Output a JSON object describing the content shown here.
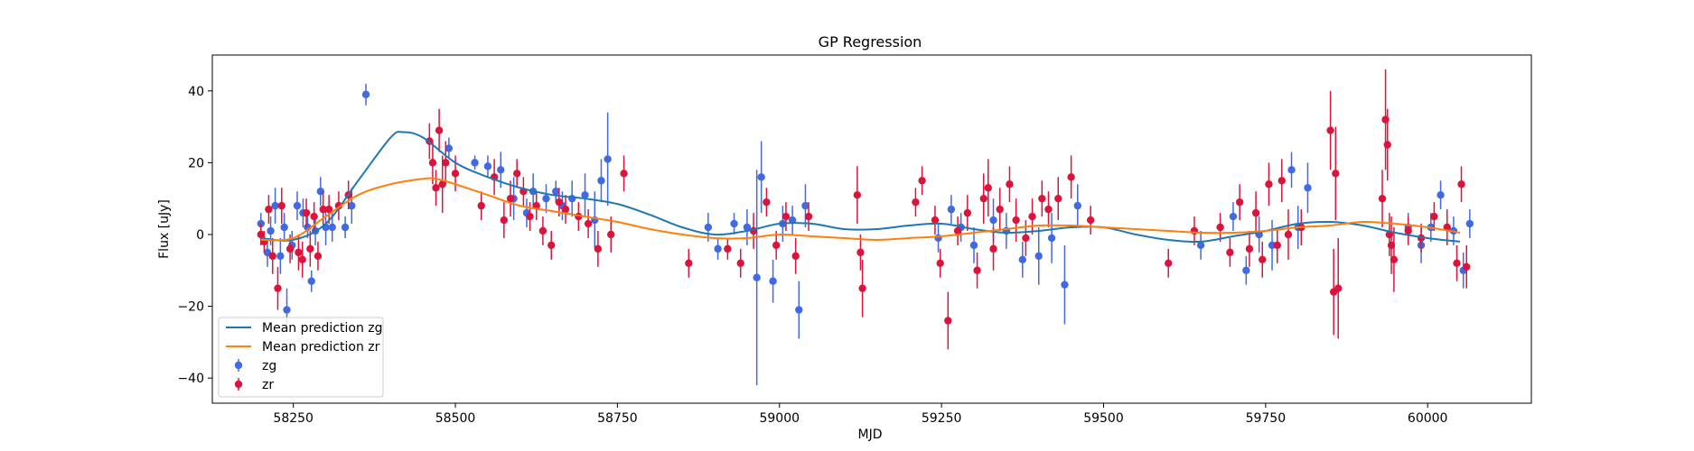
{
  "chart_data": {
    "type": "scatter",
    "title": "GP Regression",
    "xlabel": "MJD",
    "ylabel": "Flux [uJy]",
    "xlim": [
      58125,
      60160
    ],
    "ylim": [
      -47,
      50
    ],
    "xticks": [
      58250,
      58500,
      58750,
      59000,
      59250,
      59500,
      59750,
      60000
    ],
    "xtick_labels": [
      "58250",
      "58500",
      "58750",
      "59000",
      "59250",
      "59500",
      "59750",
      "60000"
    ],
    "yticks": [
      -40,
      -20,
      0,
      20,
      40
    ],
    "ytick_labels": [
      "−40",
      "−20",
      "0",
      "20",
      "40"
    ],
    "grid": false,
    "legend_position": "lower-left",
    "legend": [
      {
        "label": "Mean prediction zg",
        "kind": "line",
        "color": "#1f77b4"
      },
      {
        "label": "Mean prediction zr",
        "kind": "line",
        "color": "#ff7f0e"
      },
      {
        "label": "zg",
        "kind": "errorbar",
        "color": "#4169e1"
      },
      {
        "label": "zr",
        "kind": "errorbar",
        "color": "#dc143c"
      }
    ],
    "lines": [
      {
        "name": "Mean prediction zg",
        "color": "#1f77b4",
        "x": [
          58200,
          58250,
          58300,
          58350,
          58400,
          58420,
          58450,
          58500,
          58550,
          58600,
          58650,
          58700,
          58750,
          58800,
          58850,
          58900,
          58950,
          59000,
          59050,
          59100,
          59150,
          59200,
          59250,
          59300,
          59350,
          59400,
          59450,
          59500,
          59550,
          59600,
          59650,
          59700,
          59750,
          59800,
          59850,
          59900,
          59950,
          60000,
          60050
        ],
        "y": [
          -1,
          -1.5,
          3,
          15,
          27,
          28.5,
          27,
          20,
          16,
          13,
          11,
          10,
          8.5,
          5.5,
          2,
          0,
          1,
          3,
          3,
          1.5,
          1.5,
          2.5,
          3,
          1.5,
          0.5,
          1,
          2,
          2,
          0,
          -1.5,
          -2,
          -0.5,
          1,
          3,
          3.5,
          2.5,
          0.5,
          -1,
          -2
        ]
      },
      {
        "name": "Mean prediction zr",
        "color": "#ff7f0e",
        "x": [
          58200,
          58250,
          58300,
          58350,
          58400,
          58450,
          58470,
          58500,
          58550,
          58600,
          58650,
          58700,
          58750,
          58800,
          58850,
          58900,
          58950,
          59000,
          59050,
          59100,
          59150,
          59200,
          59250,
          59300,
          59350,
          59400,
          59450,
          59500,
          59550,
          59600,
          59650,
          59700,
          59750,
          59800,
          59850,
          59900,
          59950,
          60000,
          60050
        ],
        "y": [
          -1.5,
          -1,
          5,
          11,
          14,
          15.5,
          15.5,
          14,
          11,
          8,
          6.5,
          5,
          3.5,
          1.5,
          0,
          -1,
          -1,
          0,
          -0.5,
          -1,
          -1.5,
          -1,
          -0.5,
          0.5,
          1.5,
          2.5,
          2.5,
          2,
          1.5,
          1,
          0.5,
          0.5,
          1,
          2,
          2.5,
          3.5,
          3,
          2,
          0.5
        ]
      }
    ],
    "series": [
      {
        "name": "zg",
        "color": "#4169e1",
        "x": [
          58200,
          58210,
          58215,
          58222,
          58230,
          58236,
          58240,
          58248,
          58256,
          58265,
          58272,
          58278,
          58284,
          58292,
          58300,
          58310,
          58330,
          58340,
          58362,
          58490,
          58530,
          58550,
          58570,
          58590,
          58610,
          58620,
          58640,
          58655,
          58665,
          58680,
          58700,
          58715,
          58725,
          58735,
          58890,
          58905,
          58930,
          58950,
          58965,
          58972,
          58990,
          59005,
          59020,
          59030,
          59040,
          59245,
          59265,
          59280,
          59300,
          59330,
          59350,
          59375,
          59400,
          59420,
          59440,
          59460,
          59650,
          59700,
          59720,
          59740,
          59760,
          59790,
          59800,
          59815,
          59970,
          59990,
          60005,
          60020,
          60040,
          60055,
          60065
        ],
        "y": [
          3,
          -5,
          1,
          8,
          -6,
          2,
          -21,
          -3,
          8,
          6,
          2,
          -13,
          1,
          12,
          2,
          2,
          2,
          8,
          39,
          24,
          20,
          19,
          18,
          10,
          6,
          12,
          10,
          12,
          8,
          10,
          11,
          4,
          15,
          21,
          2,
          -4,
          3,
          2,
          -12,
          16,
          -13,
          3,
          4,
          -21,
          8,
          -1,
          7,
          2,
          -3,
          4,
          1,
          -7,
          -6,
          -1,
          -14,
          8,
          -3,
          5,
          -10,
          0,
          -3,
          18,
          2,
          13,
          2,
          -3,
          2,
          11,
          1,
          -10,
          3
        ],
        "err": [
          3,
          4,
          4,
          5,
          5,
          4,
          6,
          4,
          4,
          4,
          3,
          3,
          4,
          4,
          5,
          4,
          3,
          5,
          3,
          3,
          2,
          3,
          5,
          6,
          4,
          5,
          4,
          3,
          4,
          5,
          6,
          8,
          6,
          13,
          4,
          3,
          3,
          5,
          30,
          10,
          6,
          5,
          4,
          8,
          6,
          4,
          4,
          4,
          5,
          6,
          5,
          5,
          8,
          7,
          11,
          6,
          4,
          4,
          4,
          5,
          7,
          5,
          6,
          7,
          4,
          5,
          4,
          4,
          4,
          5,
          4
        ]
      },
      {
        "name": "zr",
        "color": "#dc143c",
        "x": [
          58200,
          58205,
          58212,
          58218,
          58226,
          58232,
          58245,
          58258,
          58264,
          58270,
          58276,
          58282,
          58288,
          58296,
          58305,
          58320,
          58335,
          58460,
          58465,
          58470,
          58475,
          58480,
          58485,
          58500,
          58540,
          58560,
          58575,
          58585,
          58595,
          58605,
          58615,
          58625,
          58635,
          58648,
          58660,
          58670,
          58690,
          58705,
          58720,
          58740,
          58760,
          58860,
          58920,
          58940,
          58960,
          58980,
          58995,
          59010,
          59025,
          59045,
          59120,
          59125,
          59128,
          59210,
          59220,
          59240,
          59248,
          59260,
          59275,
          59290,
          59305,
          59315,
          59322,
          59330,
          59340,
          59355,
          59365,
          59380,
          59390,
          59405,
          59415,
          59430,
          59450,
          59480,
          59600,
          59640,
          59680,
          59695,
          59710,
          59725,
          59735,
          59745,
          59755,
          59768,
          59775,
          59785,
          59805,
          59850,
          59855,
          59858,
          59862,
          59930,
          59935,
          59938,
          59941,
          59944,
          59948,
          59970,
          59990,
          60010,
          60030,
          60045,
          60052,
          60060
        ],
        "y": [
          0,
          -2,
          7,
          -6,
          -15,
          8,
          -4,
          -5,
          -7,
          6,
          -4,
          5,
          -6,
          7,
          7,
          8,
          11,
          26,
          20,
          13,
          29,
          14,
          20,
          17,
          8,
          16,
          4,
          10,
          17,
          12,
          5,
          8,
          1,
          -3,
          9,
          7,
          5,
          3,
          -4,
          0,
          17,
          -8,
          -4,
          -8,
          1,
          9,
          -3,
          5,
          -6,
          5,
          11,
          -5,
          -15,
          9,
          15,
          4,
          -8,
          -24,
          1,
          6,
          -10,
          10,
          13,
          -4,
          7,
          14,
          4,
          -1,
          5,
          10,
          7,
          10,
          16,
          4,
          -8,
          1,
          2,
          -5,
          9,
          -4,
          6,
          -7,
          14,
          -3,
          15,
          0,
          2,
          29,
          -16,
          17,
          -15,
          10,
          32,
          25,
          0,
          -3,
          -7,
          1,
          -1,
          5,
          2,
          -8,
          14,
          -9
        ],
        "err": [
          3,
          3,
          4,
          5,
          6,
          5,
          4,
          5,
          5,
          4,
          5,
          4,
          4,
          5,
          4,
          4,
          4,
          5,
          6,
          5,
          6,
          8,
          6,
          5,
          4,
          5,
          5,
          5,
          4,
          4,
          4,
          4,
          4,
          4,
          4,
          4,
          4,
          4,
          5,
          5,
          5,
          4,
          3,
          4,
          5,
          4,
          4,
          4,
          5,
          4,
          8,
          5,
          8,
          4,
          4,
          4,
          4,
          8,
          4,
          5,
          5,
          7,
          8,
          6,
          6,
          5,
          6,
          5,
          5,
          5,
          5,
          6,
          6,
          4,
          4,
          4,
          4,
          4,
          5,
          5,
          6,
          5,
          6,
          5,
          6,
          7,
          5,
          11,
          12,
          13,
          14,
          8,
          14,
          10,
          6,
          8,
          9,
          4,
          4,
          4,
          5,
          5,
          5,
          6
        ]
      }
    ]
  }
}
